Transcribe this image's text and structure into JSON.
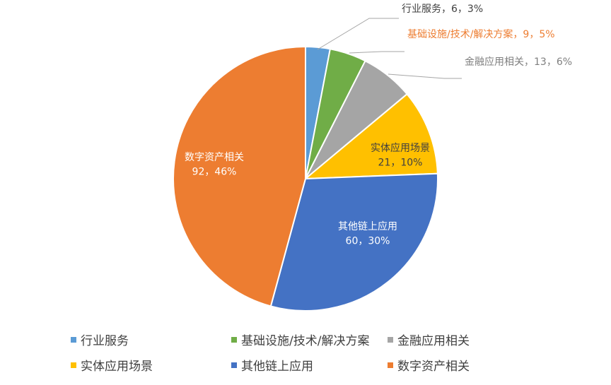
{
  "chart_data": {
    "type": "pie",
    "title": "",
    "categories": [
      "行业服务",
      "基础设施/技术/解决方案",
      "金融应用相关",
      "实体应用场景",
      "其他链上应用",
      "数字资产相关"
    ],
    "values": [
      6,
      9,
      13,
      21,
      60,
      92
    ],
    "percent_labels": [
      "3%",
      "5%",
      "6%",
      "10%",
      "30%",
      "46%"
    ],
    "data_labels": [
      "行业服务，6，3%",
      "基础设施/技术/解决方案，9，5%",
      "金融应用相关，13，6%",
      "实体应用场景\n21，10%",
      "其他链上应用\n60，30%",
      "数字资产相关\n92，46%"
    ],
    "colors": [
      "#5B9BD5",
      "#70AD47",
      "#A5A5A5",
      "#FFC000",
      "#4472C4",
      "#ED7D31"
    ],
    "label_colors": [
      "#404040",
      "#ED7D31",
      "#7F7F7F",
      "#404040",
      "#ffffff",
      "#ffffff"
    ],
    "legend": {
      "position": "bottom"
    }
  }
}
